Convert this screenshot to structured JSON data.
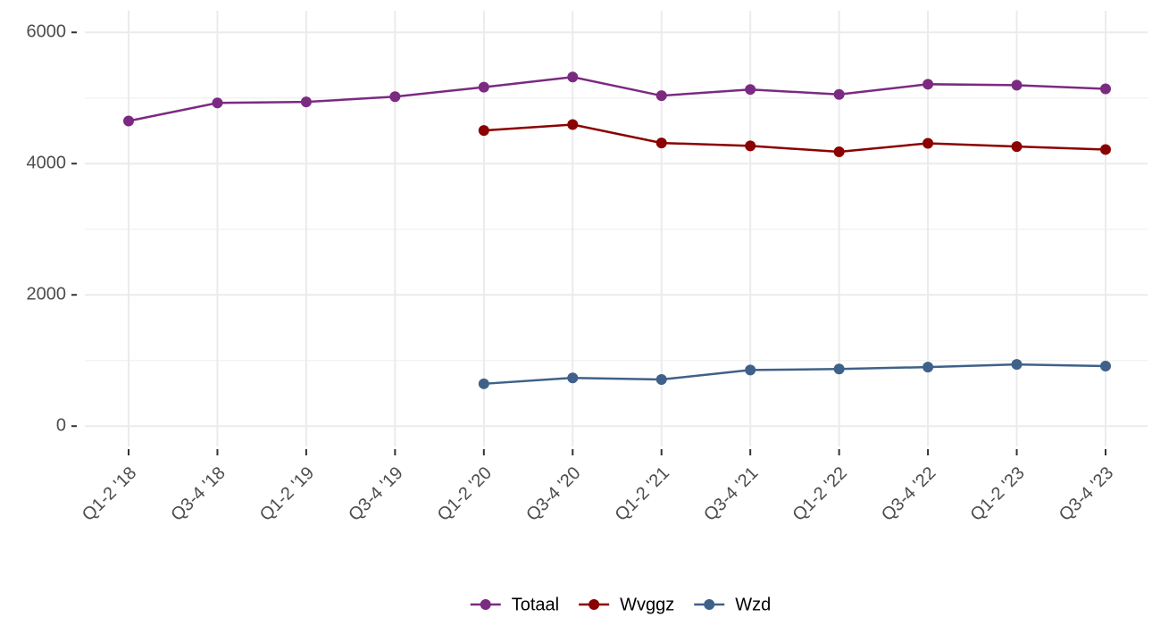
{
  "chart_data": {
    "type": "line",
    "categories": [
      "Q1-2 '18",
      "Q3-4 '18",
      "Q1-2 '19",
      "Q3-4 '19",
      "Q1-2 '20",
      "Q3-4 '20",
      "Q1-2 '21",
      "Q3-4 '21",
      "Q1-2 '22",
      "Q3-4 '22",
      "Q1-2 '23",
      "Q3-4 '23"
    ],
    "series": [
      {
        "name": "Totaal",
        "color": "#7b2a82",
        "values": [
          4650,
          4925,
          4940,
          5020,
          5165,
          5320,
          5035,
          5130,
          5055,
          5210,
          5195,
          5140
        ]
      },
      {
        "name": "Wvggz",
        "color": "#8b0000",
        "values": [
          null,
          null,
          null,
          null,
          4505,
          4595,
          4315,
          4270,
          4180,
          4310,
          4260,
          4215
        ]
      },
      {
        "name": "Wzd",
        "color": "#3f6189",
        "values": [
          null,
          null,
          null,
          null,
          645,
          735,
          710,
          855,
          870,
          900,
          940,
          915
        ]
      }
    ],
    "ylim": [
      -310,
      6330
    ],
    "yticks": [
      0,
      2000,
      4000,
      6000
    ],
    "grid": true,
    "legend": "bottom"
  }
}
